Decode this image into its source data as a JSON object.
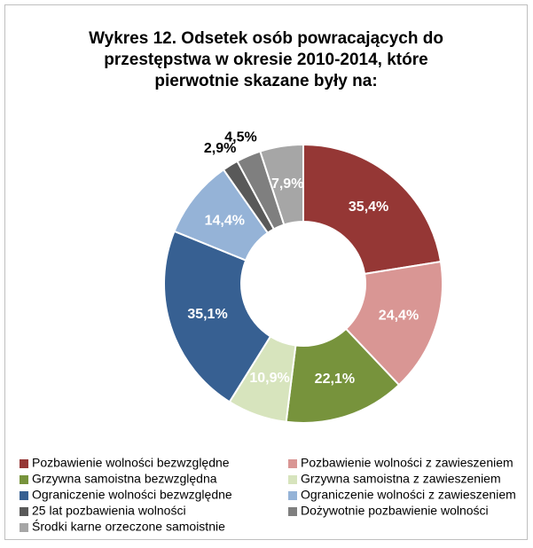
{
  "chart_data": {
    "type": "donut",
    "title": "Wykres 12. Odsetek osób powracających do przestępstwa w okresie 2010-2014, które pierwotnie skazane były na:",
    "categories": [
      "Pozbawienie wolności bezwzględne",
      "Pozbawienie wolności z zawieszeniem",
      "Grzywna samoistna bezwzględna",
      "Grzywna samoistna z zawieszeniem",
      "Ograniczenie wolności bezwzględne",
      "Ograniczenie wolności z zawieszeniem",
      "25 lat pozbawienia wolności",
      "Dożywotnie pozbawienie wolności",
      "Środki karne orzeczone samoistnie"
    ],
    "values": [
      35.4,
      24.4,
      22.1,
      10.9,
      35.1,
      14.4,
      2.9,
      4.5,
      7.9
    ],
    "value_labels": [
      "35,4%",
      "24,4%",
      "22,1%",
      "10,9%",
      "35,1%",
      "14,4%",
      "2,9%",
      "4,5%",
      "7,9%"
    ],
    "colors": [
      "#953735",
      "#d99694",
      "#77933c",
      "#d7e4bd",
      "#376092",
      "#95b3d7",
      "#595959",
      "#7f7f7f",
      "#a6a6a6"
    ],
    "legend": "bottom"
  }
}
